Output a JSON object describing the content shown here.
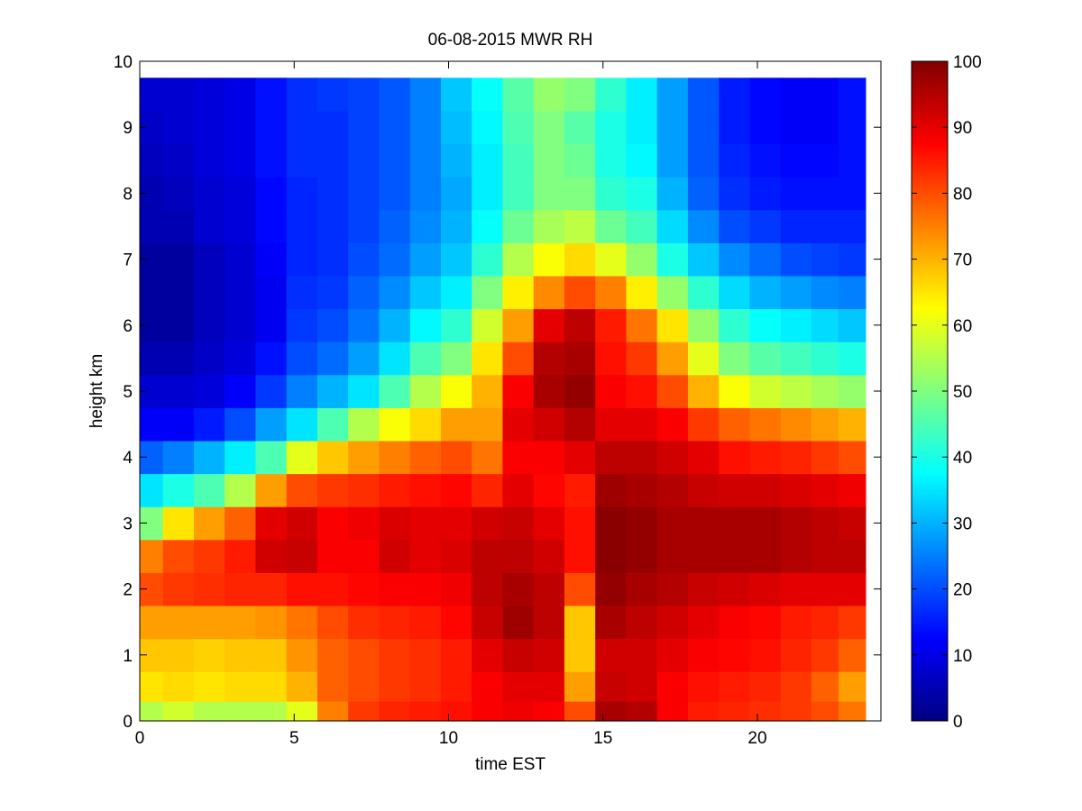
{
  "chart_data": {
    "type": "heatmap",
    "title": "06-08-2015 MWR RH",
    "xlabel": "time EST",
    "ylabel": "height km",
    "xlim": [
      0,
      24
    ],
    "ylim": [
      0,
      10
    ],
    "x_ticks": [
      0,
      5,
      10,
      15,
      20
    ],
    "y_ticks": [
      0,
      1,
      2,
      3,
      4,
      5,
      6,
      7,
      8,
      9,
      10
    ],
    "colormap": "jet",
    "colorbar": {
      "ticks": [
        0,
        10,
        20,
        30,
        40,
        50,
        60,
        70,
        80,
        90,
        100
      ],
      "range": [
        0,
        100
      ]
    },
    "data_extent": {
      "x": [
        0,
        23.5
      ],
      "y": [
        0,
        9.75
      ]
    },
    "x": [
      0.25,
      1.25,
      2.25,
      3.25,
      4.25,
      5.25,
      6.25,
      7.25,
      8.25,
      9.25,
      10.25,
      11.25,
      12.25,
      13.25,
      14.25,
      15.25,
      16.25,
      17.25,
      18.25,
      19.25,
      20.25,
      21.25,
      22.25,
      23.0
    ],
    "y": [
      0.1,
      0.5,
      1.0,
      1.5,
      2.0,
      2.5,
      3.0,
      3.5,
      4.0,
      4.5,
      5.0,
      5.5,
      6.0,
      6.5,
      7.0,
      7.5,
      8.0,
      8.5,
      9.0,
      9.5
    ],
    "profiles": {
      "0.25": [
        55,
        65,
        68,
        72,
        80,
        75,
        50,
        35,
        22,
        12,
        8,
        5,
        3,
        3,
        3,
        5,
        5,
        6,
        7,
        8
      ],
      "1.25": [
        58,
        66,
        68,
        72,
        82,
        80,
        65,
        40,
        25,
        12,
        8,
        5,
        3,
        3,
        3,
        5,
        6,
        7,
        8,
        8
      ],
      "2.25": [
        55,
        65,
        67,
        72,
        83,
        82,
        72,
        45,
        30,
        15,
        9,
        7,
        6,
        6,
        6,
        8,
        8,
        9,
        9,
        9
      ],
      "3.25": [
        55,
        66,
        68,
        72,
        84,
        85,
        78,
        55,
        36,
        20,
        12,
        9,
        8,
        8,
        8,
        9,
        9,
        10,
        10,
        10
      ],
      "4.25": [
        55,
        66,
        68,
        73,
        84,
        92,
        90,
        72,
        45,
        28,
        18,
        14,
        11,
        11,
        12,
        13,
        13,
        14,
        14,
        14
      ],
      "5.25": [
        60,
        70,
        73,
        76,
        86,
        93,
        92,
        80,
        60,
        35,
        25,
        20,
        18,
        17,
        16,
        16,
        16,
        17,
        17,
        17
      ],
      "6.25": [
        75,
        78,
        78,
        80,
        86,
        88,
        88,
        82,
        68,
        45,
        30,
        23,
        20,
        18,
        17,
        17,
        17,
        17,
        17,
        18
      ],
      "7.25": [
        82,
        80,
        80,
        83,
        87,
        88,
        89,
        83,
        72,
        55,
        35,
        28,
        24,
        22,
        20,
        19,
        19,
        19,
        19,
        19
      ],
      "8.25": [
        84,
        82,
        82,
        84,
        88,
        92,
        91,
        85,
        75,
        62,
        45,
        35,
        30,
        26,
        23,
        22,
        21,
        21,
        21,
        21
      ],
      "9.25": [
        85,
        83,
        83,
        85,
        88,
        90,
        90,
        86,
        78,
        66,
        55,
        45,
        37,
        32,
        28,
        26,
        25,
        25,
        25,
        25
      ],
      "10.25": [
        86,
        85,
        85,
        87,
        89,
        91,
        90,
        87,
        80,
        72,
        62,
        50,
        42,
        36,
        32,
        30,
        29,
        30,
        31,
        32
      ],
      "11.25": [
        88,
        88,
        90,
        93,
        94,
        94,
        92,
        84,
        76,
        72,
        70,
        65,
        58,
        50,
        42,
        38,
        36,
        36,
        37,
        38
      ],
      "12.25": [
        89,
        90,
        93,
        97,
        96,
        94,
        93,
        90,
        88,
        90,
        88,
        80,
        72,
        64,
        55,
        48,
        44,
        44,
        45,
        46
      ],
      "13.25": [
        88,
        90,
        92,
        94,
        94,
        92,
        90,
        87,
        88,
        92,
        96,
        95,
        90,
        74,
        62,
        54,
        50,
        50,
        50,
        52
      ],
      "14.25": [
        80,
        72,
        68,
        68,
        80,
        86,
        86,
        85,
        90,
        95,
        98,
        96,
        94,
        80,
        66,
        56,
        50,
        48,
        46,
        50
      ],
      "15.25": [
        96,
        93,
        92,
        96,
        98,
        99,
        99,
        97,
        94,
        90,
        88,
        86,
        85,
        75,
        60,
        48,
        42,
        40,
        40,
        42
      ],
      "16.25": [
        95,
        92,
        92,
        94,
        96,
        98,
        98,
        96,
        94,
        90,
        86,
        82,
        76,
        64,
        52,
        44,
        40,
        37,
        36,
        36
      ],
      "17.25": [
        88,
        88,
        90,
        92,
        95,
        96,
        96,
        95,
        92,
        88,
        80,
        72,
        65,
        52,
        40,
        34,
        30,
        28,
        28,
        28
      ],
      "18.25": [
        85,
        86,
        88,
        90,
        93,
        96,
        96,
        93,
        90,
        82,
        70,
        60,
        52,
        42,
        32,
        26,
        22,
        21,
        21,
        21
      ],
      "19.25": [
        84,
        85,
        87,
        88,
        92,
        96,
        96,
        92,
        86,
        78,
        62,
        50,
        42,
        34,
        26,
        20,
        17,
        16,
        15,
        15
      ],
      "20.25": [
        83,
        84,
        86,
        87,
        91,
        96,
        96,
        92,
        85,
        76,
        58,
        46,
        38,
        30,
        23,
        18,
        15,
        14,
        13,
        13
      ],
      "21.25": [
        82,
        82,
        84,
        85,
        90,
        95,
        95,
        91,
        84,
        74,
        56,
        44,
        36,
        28,
        20,
        16,
        14,
        13,
        12,
        12
      ],
      "22.25": [
        80,
        78,
        82,
        84,
        90,
        94,
        94,
        90,
        82,
        72,
        54,
        42,
        34,
        26,
        19,
        16,
        14,
        13,
        12,
        12
      ],
      "23.0": [
        76,
        72,
        78,
        82,
        90,
        94,
        93,
        89,
        80,
        70,
        52,
        40,
        32,
        25,
        18,
        16,
        14,
        14,
        14,
        14
      ]
    }
  }
}
